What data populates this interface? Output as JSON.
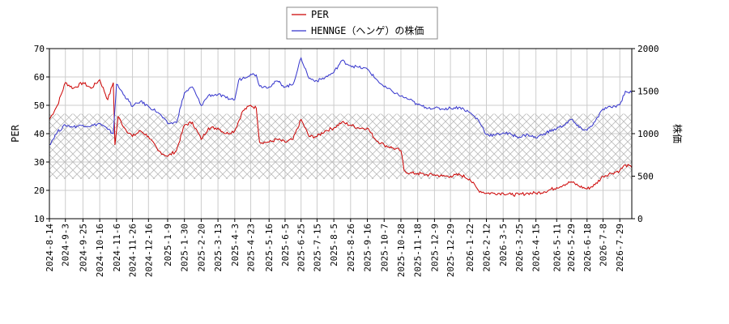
{
  "chart_data": {
    "type": "line",
    "title": "",
    "xlabel": "",
    "ylabel_left": "PER",
    "ylabel_right": "株価",
    "ylim_left": [
      10,
      70
    ],
    "ylim_right": [
      0,
      2000
    ],
    "yticks_left": [
      10,
      20,
      30,
      40,
      50,
      60,
      70
    ],
    "yticks_right": [
      0,
      500,
      1000,
      1500,
      2000
    ],
    "x_tick_labels": [
      "2024-8-14",
      "2024-9-3",
      "2024-9-25",
      "2024-10-16",
      "2024-11-6",
      "2024-11-26",
      "2024-12-16",
      "2025-1-9",
      "2025-1-30",
      "2025-2-20",
      "2025-3-13",
      "2025-4-3",
      "2025-4-23",
      "2025-5-16",
      "2025-6-5",
      "2025-6-25",
      "2025-7-15",
      "2025-8-5",
      "2025-8-26",
      "2025-9-16",
      "2025-10-7",
      "2025-10-28",
      "2025-11-18",
      "2025-12-9",
      "2025-12-29",
      "2026-1-22",
      "2026-2-12",
      "2026-3-5",
      "2026-3-25",
      "2026-4-15",
      "2026-5-11",
      "2026-5-29",
      "2026-6-18",
      "2026-7-8",
      "2026-7-29"
    ],
    "x_start": "2024-8-14",
    "x_end": "2026-8-13",
    "grid": true,
    "legend_position": "top-center",
    "hatched_band_left": [
      24,
      47
    ],
    "series": [
      {
        "name": "PER",
        "color": "#cc0000",
        "axis": "left",
        "points": [
          [
            "2024-8-14",
            45
          ],
          [
            "2024-8-24",
            50
          ],
          [
            "2024-9-3",
            58
          ],
          [
            "2024-9-13",
            56
          ],
          [
            "2024-9-25",
            58
          ],
          [
            "2024-10-5",
            56
          ],
          [
            "2024-10-16",
            59
          ],
          [
            "2024-10-26",
            52
          ],
          [
            "2024-11-2",
            58
          ],
          [
            "2024-11-4",
            36
          ],
          [
            "2024-11-8",
            46
          ],
          [
            "2024-11-16",
            42
          ],
          [
            "2024-11-26",
            39
          ],
          [
            "2024-12-6",
            41
          ],
          [
            "2024-12-16",
            39
          ],
          [
            "2024-12-28",
            34
          ],
          [
            "2025-1-9",
            32
          ],
          [
            "2025-1-20",
            34
          ],
          [
            "2025-1-30",
            43
          ],
          [
            "2025-2-9",
            44
          ],
          [
            "2025-2-20",
            38
          ],
          [
            "2025-3-1",
            42
          ],
          [
            "2025-3-13",
            42
          ],
          [
            "2025-3-23",
            40
          ],
          [
            "2025-4-3",
            41
          ],
          [
            "2025-4-13",
            48
          ],
          [
            "2025-4-23",
            50
          ],
          [
            "2025-4-30",
            49
          ],
          [
            "2025-5-4",
            37
          ],
          [
            "2025-5-16",
            37
          ],
          [
            "2025-5-26",
            38
          ],
          [
            "2025-6-5",
            37
          ],
          [
            "2025-6-15",
            38
          ],
          [
            "2025-6-25",
            45
          ],
          [
            "2025-7-5",
            39
          ],
          [
            "2025-7-15",
            39
          ],
          [
            "2025-7-25",
            41
          ],
          [
            "2025-8-5",
            42
          ],
          [
            "2025-8-15",
            44
          ],
          [
            "2025-8-26",
            43
          ],
          [
            "2025-9-5",
            42
          ],
          [
            "2025-9-16",
            42
          ],
          [
            "2025-9-26",
            38
          ],
          [
            "2025-10-7",
            36
          ],
          [
            "2025-10-17",
            35
          ],
          [
            "2025-10-28",
            34
          ],
          [
            "2025-11-1",
            27
          ],
          [
            "2025-11-8",
            26
          ],
          [
            "2025-11-18",
            26
          ],
          [
            "2025-11-28",
            25.5
          ],
          [
            "2025-12-9",
            25.5
          ],
          [
            "2025-12-19",
            25
          ],
          [
            "2025-12-29",
            25
          ],
          [
            "2026-1-10",
            25.5
          ],
          [
            "2026-1-22",
            24
          ],
          [
            "2026-2-2",
            20
          ],
          [
            "2026-2-12",
            19
          ],
          [
            "2026-2-22",
            19
          ],
          [
            "2026-3-5",
            19
          ],
          [
            "2026-3-15",
            18.5
          ],
          [
            "2026-3-25",
            18.5
          ],
          [
            "2026-4-5",
            19
          ],
          [
            "2026-4-15",
            19
          ],
          [
            "2026-4-25",
            19.5
          ],
          [
            "2026-5-11",
            21
          ],
          [
            "2026-5-20",
            22
          ],
          [
            "2026-5-29",
            23
          ],
          [
            "2026-6-8",
            21.5
          ],
          [
            "2026-6-18",
            20.5
          ],
          [
            "2026-6-28",
            22
          ],
          [
            "2026-7-8",
            25
          ],
          [
            "2026-7-18",
            26
          ],
          [
            "2026-7-29",
            27
          ],
          [
            "2026-8-5",
            29
          ],
          [
            "2026-8-13",
            28
          ]
        ]
      },
      {
        "name": "HENNGE（ヘンゲ）の株価",
        "color": "#3333cc",
        "axis": "right",
        "points": [
          [
            "2024-8-14",
            870
          ],
          [
            "2024-8-24",
            1020
          ],
          [
            "2024-9-3",
            1100
          ],
          [
            "2024-9-13",
            1080
          ],
          [
            "2024-9-25",
            1100
          ],
          [
            "2024-10-5",
            1090
          ],
          [
            "2024-10-16",
            1120
          ],
          [
            "2024-10-26",
            1050
          ],
          [
            "2024-11-2",
            1000
          ],
          [
            "2024-11-6",
            1580
          ],
          [
            "2024-11-16",
            1450
          ],
          [
            "2024-11-26",
            1320
          ],
          [
            "2024-12-6",
            1380
          ],
          [
            "2024-12-16",
            1320
          ],
          [
            "2024-12-28",
            1250
          ],
          [
            "2025-1-9",
            1120
          ],
          [
            "2025-1-20",
            1130
          ],
          [
            "2025-1-30",
            1480
          ],
          [
            "2025-2-9",
            1550
          ],
          [
            "2025-2-20",
            1330
          ],
          [
            "2025-3-1",
            1450
          ],
          [
            "2025-3-13",
            1460
          ],
          [
            "2025-3-23",
            1420
          ],
          [
            "2025-4-3",
            1400
          ],
          [
            "2025-4-8",
            1630
          ],
          [
            "2025-4-23",
            1700
          ],
          [
            "2025-4-30",
            1690
          ],
          [
            "2025-5-4",
            1560
          ],
          [
            "2025-5-16",
            1550
          ],
          [
            "2025-5-26",
            1620
          ],
          [
            "2025-6-5",
            1550
          ],
          [
            "2025-6-15",
            1580
          ],
          [
            "2025-6-25",
            1890
          ],
          [
            "2025-7-5",
            1650
          ],
          [
            "2025-7-15",
            1620
          ],
          [
            "2025-7-25",
            1660
          ],
          [
            "2025-8-5",
            1720
          ],
          [
            "2025-8-15",
            1860
          ],
          [
            "2025-8-26",
            1800
          ],
          [
            "2025-9-5",
            1780
          ],
          [
            "2025-9-16",
            1760
          ],
          [
            "2025-9-26",
            1650
          ],
          [
            "2025-10-7",
            1550
          ],
          [
            "2025-10-17",
            1500
          ],
          [
            "2025-10-28",
            1440
          ],
          [
            "2025-11-8",
            1400
          ],
          [
            "2025-11-18",
            1340
          ],
          [
            "2025-11-28",
            1310
          ],
          [
            "2025-12-9",
            1300
          ],
          [
            "2025-12-19",
            1290
          ],
          [
            "2025-12-29",
            1300
          ],
          [
            "2026-1-10",
            1310
          ],
          [
            "2026-1-22",
            1250
          ],
          [
            "2026-2-2",
            1160
          ],
          [
            "2026-2-12",
            990
          ],
          [
            "2026-2-22",
            980
          ],
          [
            "2026-3-5",
            1010
          ],
          [
            "2026-3-15",
            990
          ],
          [
            "2026-3-25",
            960
          ],
          [
            "2026-4-5",
            990
          ],
          [
            "2026-4-15",
            950
          ],
          [
            "2026-4-25",
            1000
          ],
          [
            "2026-5-11",
            1060
          ],
          [
            "2026-5-20",
            1100
          ],
          [
            "2026-5-29",
            1170
          ],
          [
            "2026-6-8",
            1070
          ],
          [
            "2026-6-18",
            1040
          ],
          [
            "2026-6-28",
            1140
          ],
          [
            "2026-7-8",
            1290
          ],
          [
            "2026-7-18",
            1310
          ],
          [
            "2026-7-29",
            1340
          ],
          [
            "2026-8-5",
            1500
          ],
          [
            "2026-8-13",
            1480
          ]
        ]
      }
    ]
  }
}
